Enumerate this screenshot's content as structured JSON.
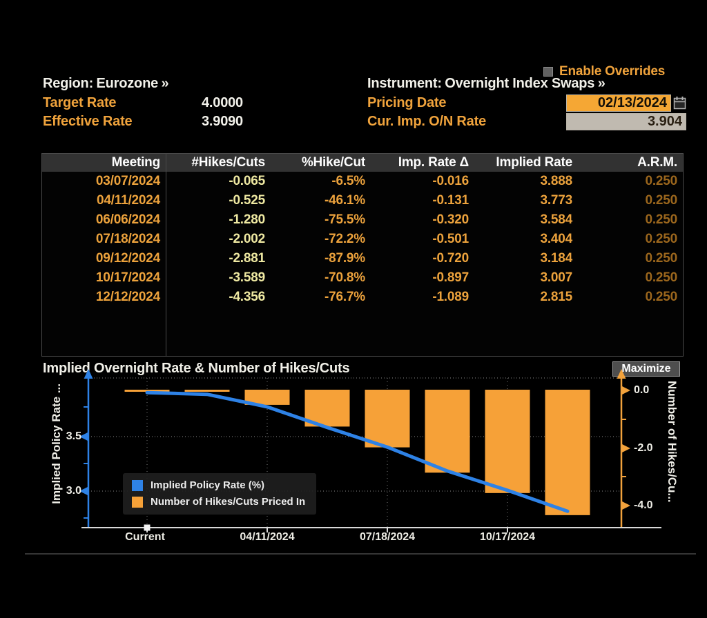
{
  "header": {
    "enable_overrides": "Enable Overrides",
    "region": {
      "label": "Region:",
      "value": "Eurozone",
      "more": "»"
    },
    "instrument": {
      "label": "Instrument:",
      "value": "Overnight Index Swaps",
      "more": "»"
    },
    "target_rate": {
      "label": "Target Rate",
      "value": "4.0000"
    },
    "effective_rate": {
      "label": "Effective Rate",
      "value": "3.9090"
    },
    "pricing_date": {
      "label": "Pricing Date",
      "value": "02/13/2024"
    },
    "cur_imp_on_rate": {
      "label": "Cur. Imp. O/N Rate",
      "value": "3.904"
    }
  },
  "table": {
    "columns": [
      "Meeting",
      "#Hikes/Cuts",
      "%Hike/Cut",
      "Imp. Rate Δ",
      "Implied Rate",
      "A.R.M."
    ],
    "rows": [
      [
        "03/07/2024",
        "-0.065",
        "-6.5%",
        "-0.016",
        "3.888",
        "0.250"
      ],
      [
        "04/11/2024",
        "-0.525",
        "-46.1%",
        "-0.131",
        "3.773",
        "0.250"
      ],
      [
        "06/06/2024",
        "-1.280",
        "-75.5%",
        "-0.320",
        "3.584",
        "0.250"
      ],
      [
        "07/18/2024",
        "-2.002",
        "-72.2%",
        "-0.501",
        "3.404",
        "0.250"
      ],
      [
        "09/12/2024",
        "-2.881",
        "-87.9%",
        "-0.720",
        "3.184",
        "0.250"
      ],
      [
        "10/17/2024",
        "-3.589",
        "-70.8%",
        "-0.897",
        "3.007",
        "0.250"
      ],
      [
        "12/12/2024",
        "-4.356",
        "-76.7%",
        "-1.089",
        "2.815",
        "0.250"
      ]
    ]
  },
  "chart": {
    "maximize_label": "Maximize"
  },
  "chart_data": {
    "type": "line+bar",
    "title": "Implied Overnight Rate & Number of Hikes/Cuts",
    "categories": [
      "Current",
      "03/07/2024",
      "04/11/2024",
      "06/06/2024",
      "07/18/2024",
      "09/12/2024",
      "10/17/2024",
      "12/12/2024"
    ],
    "series": [
      {
        "name": "Implied Policy Rate (%)",
        "type": "line",
        "axis": "left",
        "color": "#2e82e6",
        "values": [
          3.904,
          3.888,
          3.773,
          3.584,
          3.404,
          3.184,
          3.007,
          2.815
        ]
      },
      {
        "name": "Number of Hikes/Cuts Priced In",
        "type": "bar",
        "axis": "right",
        "color": "#f6a138",
        "values": [
          0,
          -0.065,
          -0.525,
          -1.28,
          -2.002,
          -2.881,
          -3.589,
          -4.356
        ]
      }
    ],
    "left_axis": {
      "label": "Implied Policy Rate ...",
      "tick_labels": [
        "3.5",
        "3.0"
      ],
      "ticks": [
        3.5,
        3.0
      ],
      "range": [
        2.72,
        4.02
      ]
    },
    "right_axis": {
      "label": "Number of Hikes/Cu...",
      "tick_labels": [
        "0.0",
        "-2.0",
        "-4.0"
      ],
      "ticks": [
        0.0,
        -2.0,
        -4.0
      ],
      "range": [
        0.1,
        -4.77
      ]
    },
    "x_tick_labels": [
      "Current",
      "04/11/2024",
      "07/18/2024",
      "10/17/2024"
    ],
    "grid": "dotted",
    "legend_position": "inside-bottom-left"
  },
  "colors": {
    "accent_orange": "#f0a33c",
    "pale_yellow": "#efe9a2",
    "dim_orange": "#9c671d",
    "line_blue": "#2e82e6",
    "bar_orange": "#f6a138"
  }
}
